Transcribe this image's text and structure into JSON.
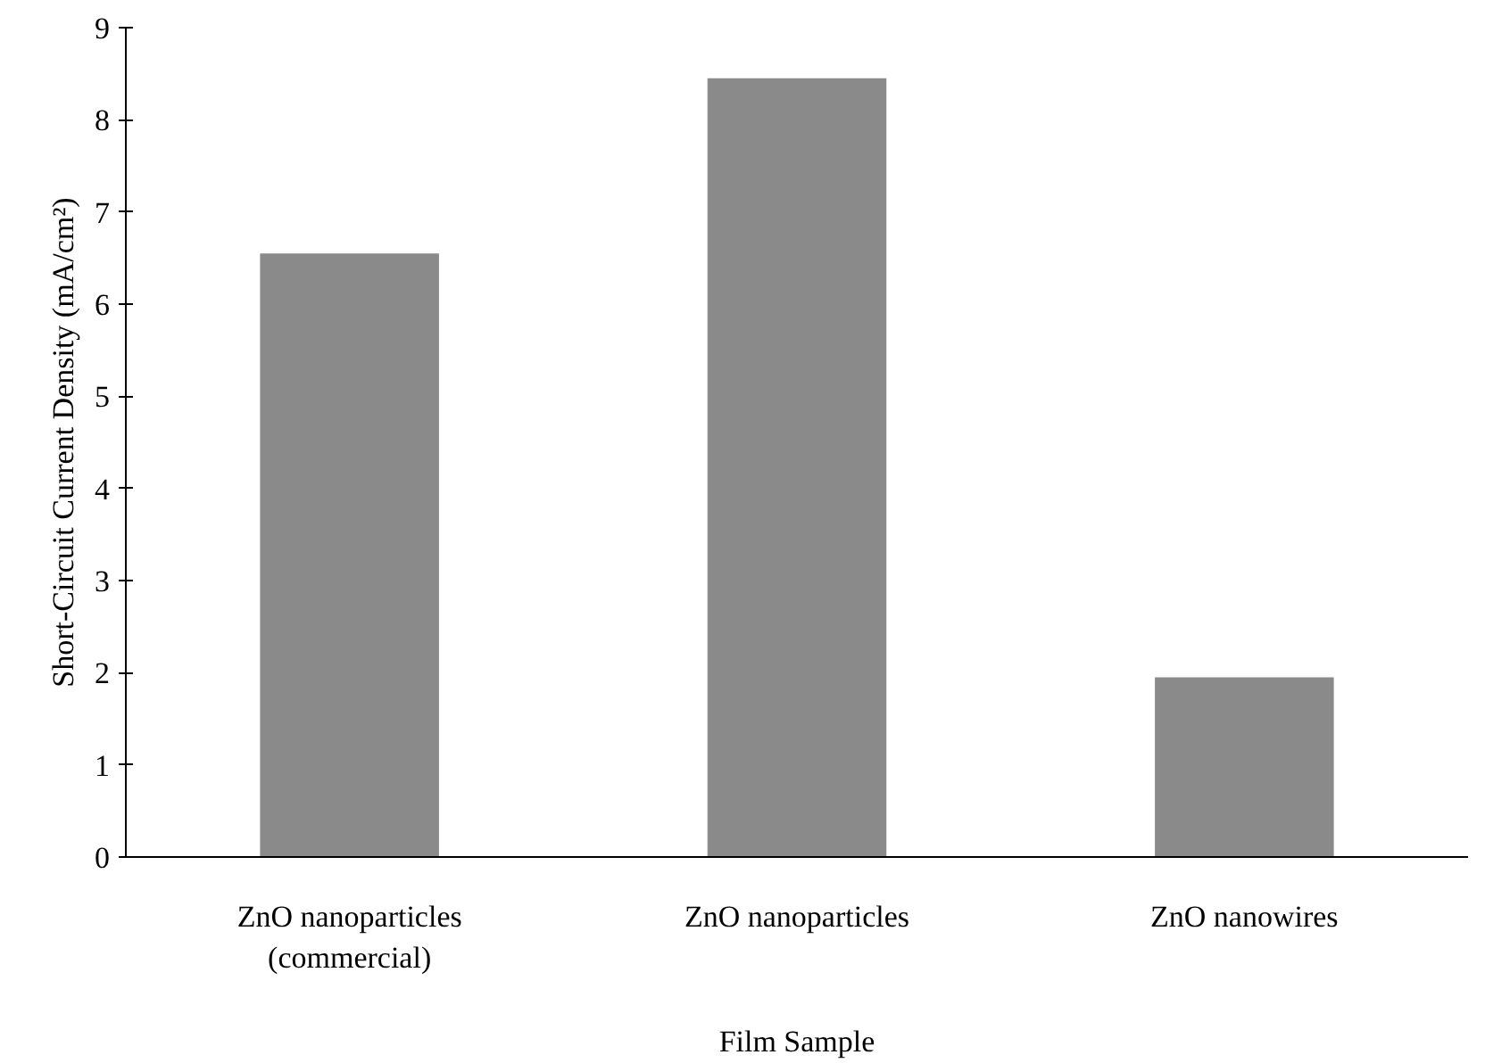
{
  "chart_data": {
    "type": "bar",
    "xlabel": "Film Sample",
    "ylabel": "Short-Circuit Current Density (mA/cm²)",
    "categories": [
      "ZnO nanoparticles\n(commercial)",
      "ZnO nanoparticles",
      "ZnO nanowires"
    ],
    "values": [
      6.55,
      8.45,
      1.95
    ],
    "color": "#8a8a8a",
    "ylim": [
      0,
      9
    ],
    "yticks": [
      0,
      1,
      2,
      3,
      4,
      5,
      6,
      7,
      8,
      9
    ],
    "grid": false
  }
}
